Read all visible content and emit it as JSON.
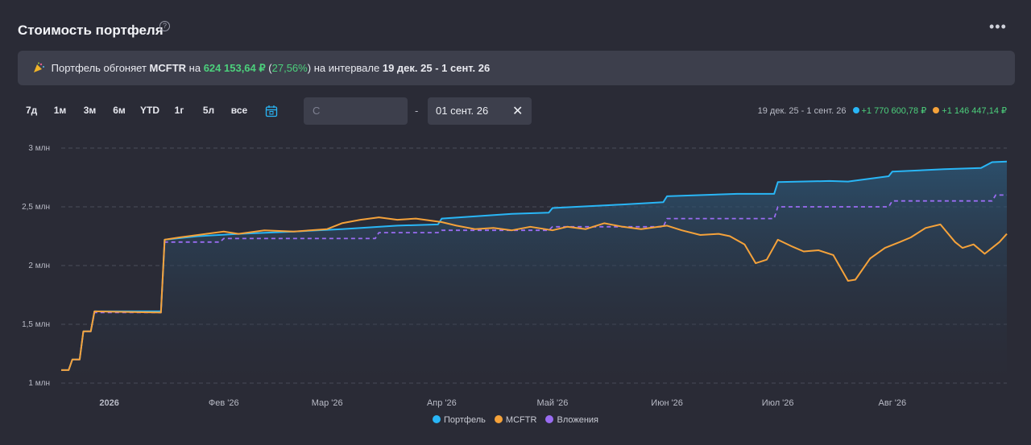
{
  "header": {
    "title": "Стоимость портфеля",
    "help_icon": "?",
    "more_icon": "•••"
  },
  "banner": {
    "prefix": "Портфель обгоняет",
    "benchmark": "MCFTR",
    "on": "на",
    "amount": "624 153,64 ₽",
    "pct_open": "(",
    "pct": "27,56%",
    "pct_close": ")",
    "interval_text": "на интервале",
    "interval": "19 дек. 25 - 1 сент. 26"
  },
  "periods": [
    "7д",
    "1м",
    "3м",
    "6м",
    "YTD",
    "1г",
    "5л",
    "все"
  ],
  "date_from": {
    "placeholder": "С"
  },
  "date_sep": "-",
  "date_to": {
    "value": "01 сент. 26"
  },
  "summary": {
    "interval": "19 дек. 25 - 1 сент. 26",
    "portfolio_change": "+1 770 600,78 ₽",
    "mcftr_change": "+1 146 447,14 ₽"
  },
  "colors": {
    "portfolio": "#29b6f6",
    "mcftr": "#f5a23a",
    "investments": "#9a6cf2",
    "positive": "#4cd07c"
  },
  "chart_data": {
    "type": "line",
    "xlabels": [
      "2026",
      "Фев '26",
      "Мар '26",
      "Апр '26",
      "Май '26",
      "Июн '26",
      "Июл '26",
      "Авг '26"
    ],
    "xlabel_dates": [
      "2026-01-01",
      "2026-02-01",
      "2026-03-01",
      "2026-04-01",
      "2026-05-01",
      "2026-06-01",
      "2026-07-01",
      "2026-08-01"
    ],
    "xlim": [
      "2025-12-19",
      "2026-09-01"
    ],
    "yticks": [
      1000000,
      1500000,
      2000000,
      2500000,
      3000000
    ],
    "ytick_labels": [
      "1 млн",
      "1,5 млн",
      "2 млн",
      "2,5 млн",
      "3 млн"
    ],
    "ylim": [
      1000000,
      3000000
    ],
    "series": [
      {
        "name": "Портфель",
        "style": "solid-area",
        "points": [
          [
            "2025-12-19",
            1110000
          ],
          [
            "2025-12-21",
            1110000
          ],
          [
            "2025-12-22",
            1200000
          ],
          [
            "2025-12-24",
            1200000
          ],
          [
            "2025-12-25",
            1440000
          ],
          [
            "2025-12-27",
            1440000
          ],
          [
            "2025-12-28",
            1610000
          ],
          [
            "2026-01-15",
            1610000
          ],
          [
            "2026-01-16",
            2220000
          ],
          [
            "2026-01-25",
            2250000
          ],
          [
            "2026-02-05",
            2270000
          ],
          [
            "2026-02-20",
            2290000
          ],
          [
            "2026-03-05",
            2310000
          ],
          [
            "2026-03-20",
            2340000
          ],
          [
            "2026-03-31",
            2350000
          ],
          [
            "2026-04-01",
            2400000
          ],
          [
            "2026-04-20",
            2440000
          ],
          [
            "2026-04-30",
            2450000
          ],
          [
            "2026-05-01",
            2490000
          ],
          [
            "2026-05-20",
            2520000
          ],
          [
            "2026-05-31",
            2540000
          ],
          [
            "2026-06-01",
            2590000
          ],
          [
            "2026-06-20",
            2610000
          ],
          [
            "2026-06-30",
            2610000
          ],
          [
            "2026-07-01",
            2710000
          ],
          [
            "2026-07-15",
            2720000
          ],
          [
            "2026-07-20",
            2715000
          ],
          [
            "2026-07-31",
            2760000
          ],
          [
            "2026-08-01",
            2800000
          ],
          [
            "2026-08-15",
            2820000
          ],
          [
            "2026-08-25",
            2830000
          ],
          [
            "2026-08-28",
            2880000
          ],
          [
            "2026-09-01",
            2885000
          ]
        ]
      },
      {
        "name": "MCFTR",
        "style": "solid",
        "points": [
          [
            "2025-12-19",
            1110000
          ],
          [
            "2025-12-21",
            1110000
          ],
          [
            "2025-12-22",
            1200000
          ],
          [
            "2025-12-24",
            1200000
          ],
          [
            "2025-12-25",
            1440000
          ],
          [
            "2025-12-27",
            1440000
          ],
          [
            "2025-12-28",
            1610000
          ],
          [
            "2026-01-15",
            1600000
          ],
          [
            "2026-01-16",
            2220000
          ],
          [
            "2026-01-20",
            2240000
          ],
          [
            "2026-01-25",
            2260000
          ],
          [
            "2026-02-01",
            2290000
          ],
          [
            "2026-02-05",
            2270000
          ],
          [
            "2026-02-12",
            2300000
          ],
          [
            "2026-02-20",
            2290000
          ],
          [
            "2026-03-01",
            2310000
          ],
          [
            "2026-03-05",
            2360000
          ],
          [
            "2026-03-10",
            2390000
          ],
          [
            "2026-03-15",
            2410000
          ],
          [
            "2026-03-20",
            2390000
          ],
          [
            "2026-03-25",
            2400000
          ],
          [
            "2026-04-01",
            2370000
          ],
          [
            "2026-04-05",
            2340000
          ],
          [
            "2026-04-10",
            2310000
          ],
          [
            "2026-04-15",
            2320000
          ],
          [
            "2026-04-20",
            2300000
          ],
          [
            "2026-04-25",
            2330000
          ],
          [
            "2026-05-01",
            2300000
          ],
          [
            "2026-05-05",
            2330000
          ],
          [
            "2026-05-10",
            2310000
          ],
          [
            "2026-05-15",
            2360000
          ],
          [
            "2026-05-20",
            2330000
          ],
          [
            "2026-05-25",
            2310000
          ],
          [
            "2026-06-01",
            2340000
          ],
          [
            "2026-06-05",
            2300000
          ],
          [
            "2026-06-10",
            2260000
          ],
          [
            "2026-06-15",
            2270000
          ],
          [
            "2026-06-18",
            2250000
          ],
          [
            "2026-06-22",
            2180000
          ],
          [
            "2026-06-25",
            2020000
          ],
          [
            "2026-06-28",
            2050000
          ],
          [
            "2026-07-01",
            2220000
          ],
          [
            "2026-07-05",
            2160000
          ],
          [
            "2026-07-08",
            2120000
          ],
          [
            "2026-07-12",
            2130000
          ],
          [
            "2026-07-16",
            2090000
          ],
          [
            "2026-07-20",
            1870000
          ],
          [
            "2026-07-22",
            1880000
          ],
          [
            "2026-07-26",
            2060000
          ],
          [
            "2026-07-30",
            2150000
          ],
          [
            "2026-08-03",
            2200000
          ],
          [
            "2026-08-06",
            2240000
          ],
          [
            "2026-08-10",
            2320000
          ],
          [
            "2026-08-14",
            2350000
          ],
          [
            "2026-08-18",
            2200000
          ],
          [
            "2026-08-20",
            2150000
          ],
          [
            "2026-08-23",
            2180000
          ],
          [
            "2026-08-26",
            2100000
          ],
          [
            "2026-08-30",
            2200000
          ],
          [
            "2026-09-01",
            2270000
          ]
        ]
      },
      {
        "name": "Вложения",
        "style": "dashed",
        "points": [
          [
            "2025-12-19",
            1110000
          ],
          [
            "2025-12-21",
            1110000
          ],
          [
            "2025-12-22",
            1200000
          ],
          [
            "2025-12-24",
            1200000
          ],
          [
            "2025-12-25",
            1440000
          ],
          [
            "2025-12-27",
            1440000
          ],
          [
            "2025-12-28",
            1600000
          ],
          [
            "2026-01-15",
            1600000
          ],
          [
            "2026-01-16",
            2200000
          ],
          [
            "2026-01-31",
            2200000
          ],
          [
            "2026-02-01",
            2230000
          ],
          [
            "2026-03-14",
            2230000
          ],
          [
            "2026-03-15",
            2280000
          ],
          [
            "2026-03-31",
            2280000
          ],
          [
            "2026-04-01",
            2300000
          ],
          [
            "2026-04-30",
            2300000
          ],
          [
            "2026-05-01",
            2330000
          ],
          [
            "2026-05-31",
            2330000
          ],
          [
            "2026-06-01",
            2400000
          ],
          [
            "2026-06-30",
            2400000
          ],
          [
            "2026-07-01",
            2500000
          ],
          [
            "2026-07-31",
            2500000
          ],
          [
            "2026-08-01",
            2550000
          ],
          [
            "2026-08-28",
            2550000
          ],
          [
            "2026-08-29",
            2600000
          ],
          [
            "2026-09-01",
            2600000
          ]
        ]
      }
    ],
    "grid": true,
    "legend_position": "bottom-center"
  }
}
